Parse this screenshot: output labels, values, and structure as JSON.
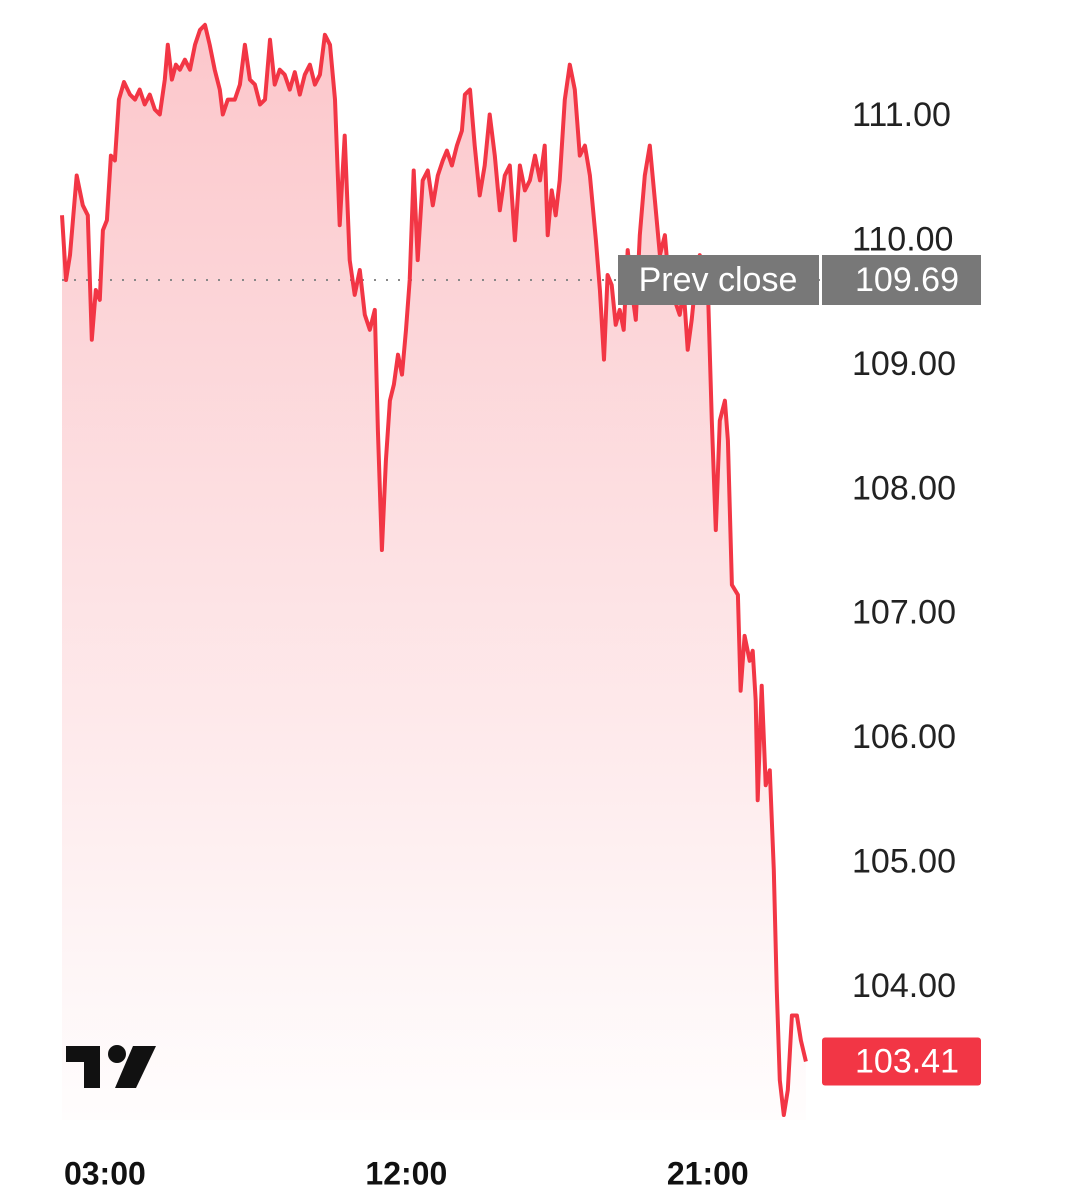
{
  "chart_data": {
    "type": "line",
    "color": "#f23645",
    "x": [
      1.72,
      1.84,
      1.96,
      2.16,
      2.34,
      2.49,
      2.61,
      2.73,
      2.85,
      2.94,
      3.06,
      3.18,
      3.3,
      3.42,
      3.57,
      3.75,
      3.9,
      4.04,
      4.19,
      4.34,
      4.49,
      4.64,
      4.79,
      4.88,
      5.0,
      5.12,
      5.24,
      5.39,
      5.54,
      5.69,
      5.84,
      5.99,
      6.13,
      6.28,
      6.43,
      6.52,
      6.67,
      6.88,
      7.03,
      7.18,
      7.33,
      7.48,
      7.63,
      7.78,
      7.93,
      8.07,
      8.22,
      8.37,
      8.52,
      8.67,
      8.82,
      8.97,
      9.12,
      9.27,
      9.42,
      9.57,
      9.72,
      9.87,
      10.01,
      10.16,
      10.31,
      10.46,
      10.61,
      10.76,
      10.91,
      11.06,
      11.15,
      11.27,
      11.39,
      11.51,
      11.63,
      11.75,
      11.87,
      11.99,
      12.1,
      12.22,
      12.34,
      12.49,
      12.64,
      12.79,
      12.94,
      13.09,
      13.21,
      13.36,
      13.51,
      13.66,
      13.75,
      13.9,
      14.04,
      14.19,
      14.34,
      14.49,
      14.64,
      14.79,
      14.94,
      15.09,
      15.24,
      15.39,
      15.54,
      15.69,
      15.84,
      15.99,
      16.13,
      16.22,
      16.34,
      16.46,
      16.58,
      16.73,
      16.88,
      17.03,
      17.18,
      17.33,
      17.48,
      17.66,
      17.78,
      17.9,
      18.01,
      18.13,
      18.25,
      18.37,
      18.49,
      18.61,
      18.73,
      18.85,
      18.97,
      19.12,
      19.27,
      19.42,
      19.57,
      19.72,
      19.87,
      20.01,
      20.16,
      20.28,
      20.4,
      20.52,
      20.64,
      20.76,
      20.88,
      21.0,
      21.12,
      21.24,
      21.36,
      21.51,
      21.6,
      21.72,
      21.9,
      21.98,
      22.1,
      22.25,
      22.34,
      22.43,
      22.49,
      22.61,
      22.73,
      22.85,
      22.97,
      23.06,
      23.15,
      23.27,
      23.39,
      23.51,
      23.66,
      23.78,
      23.93
    ],
    "values": [
      110.21,
      109.69,
      109.89,
      110.53,
      110.29,
      110.21,
      109.21,
      109.61,
      109.53,
      110.09,
      110.17,
      110.69,
      110.65,
      111.14,
      111.28,
      111.18,
      111.14,
      111.22,
      111.1,
      111.18,
      111.06,
      111.02,
      111.3,
      111.58,
      111.3,
      111.42,
      111.38,
      111.46,
      111.38,
      111.58,
      111.7,
      111.74,
      111.58,
      111.38,
      111.22,
      111.02,
      111.14,
      111.14,
      111.26,
      111.58,
      111.3,
      111.26,
      111.1,
      111.14,
      111.62,
      111.26,
      111.38,
      111.34,
      111.22,
      111.36,
      111.18,
      111.34,
      111.42,
      111.26,
      111.34,
      111.66,
      111.58,
      111.14,
      110.13,
      110.85,
      109.85,
      109.57,
      109.77,
      109.41,
      109.29,
      109.45,
      108.48,
      107.52,
      108.24,
      108.72,
      108.85,
      109.09,
      108.93,
      109.29,
      109.69,
      110.57,
      109.85,
      110.49,
      110.57,
      110.29,
      110.53,
      110.65,
      110.73,
      110.61,
      110.77,
      110.89,
      111.18,
      111.22,
      110.77,
      110.37,
      110.61,
      111.02,
      110.69,
      110.25,
      110.53,
      110.61,
      110.01,
      110.61,
      110.41,
      110.49,
      110.69,
      110.49,
      110.77,
      110.05,
      110.41,
      110.21,
      110.49,
      111.14,
      111.42,
      111.22,
      110.69,
      110.77,
      110.53,
      110.01,
      109.61,
      109.05,
      109.73,
      109.65,
      109.33,
      109.45,
      109.29,
      109.93,
      109.61,
      109.37,
      110.05,
      110.53,
      110.77,
      110.33,
      109.89,
      110.05,
      109.57,
      109.53,
      109.41,
      109.61,
      109.13,
      109.37,
      109.69,
      109.89,
      109.77,
      109.65,
      108.56,
      107.68,
      108.56,
      108.72,
      108.4,
      107.24,
      107.16,
      106.39,
      106.83,
      106.63,
      106.71,
      106.31,
      105.51,
      106.43,
      105.63,
      105.75,
      104.95,
      103.98,
      103.26,
      102.98,
      103.18,
      103.78,
      103.78,
      103.58,
      103.41
    ],
    "xlim": [
      1.72,
      24.35
    ],
    "xticks": [
      {
        "value": 3,
        "label": "03:00"
      },
      {
        "value": 12,
        "label": "12:00"
      },
      {
        "value": 21,
        "label": "21:00"
      }
    ],
    "ylim": [
      102.94,
      111.94
    ],
    "yticks": [
      {
        "value": 104,
        "label": "104.00"
      },
      {
        "value": 105,
        "label": "105.00"
      },
      {
        "value": 106,
        "label": "106.00"
      },
      {
        "value": 107,
        "label": "107.00"
      },
      {
        "value": 108,
        "label": "108.00"
      },
      {
        "value": 109,
        "label": "109.00"
      },
      {
        "value": 110,
        "label": "110.00"
      },
      {
        "value": 111,
        "label": "111.00"
      }
    ],
    "prev_close_label": "Prev close",
    "prev_close": 109.69
  }
}
